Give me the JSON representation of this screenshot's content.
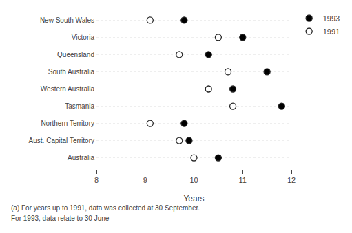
{
  "chart_data": {
    "type": "dot",
    "categories": [
      "New South Wales",
      "Victoria",
      "Queensland",
      "South Australia",
      "Western Australia",
      "Tasmania",
      "Northern Territory",
      "Aust. Capital Territory",
      "Australia"
    ],
    "series": [
      {
        "name": "1991",
        "color": "white",
        "marker": "circle",
        "values": [
          9.1,
          10.5,
          9.7,
          10.7,
          10.3,
          10.8,
          9.1,
          9.7,
          10.0
        ]
      },
      {
        "name": "1993",
        "color": "black",
        "marker": "circle",
        "values": [
          9.8,
          11.0,
          10.3,
          11.5,
          10.8,
          11.8,
          9.8,
          9.9,
          10.5
        ]
      }
    ],
    "xlabel": "Years",
    "xlim": [
      8,
      12
    ],
    "xticks": [
      8,
      9,
      10,
      11,
      12
    ],
    "grid": "y",
    "legend": "right",
    "annotations": [
      "(a) For years up to 1991, data was collected at 30 September.",
      "For 1993, data relate to 30 June"
    ]
  }
}
